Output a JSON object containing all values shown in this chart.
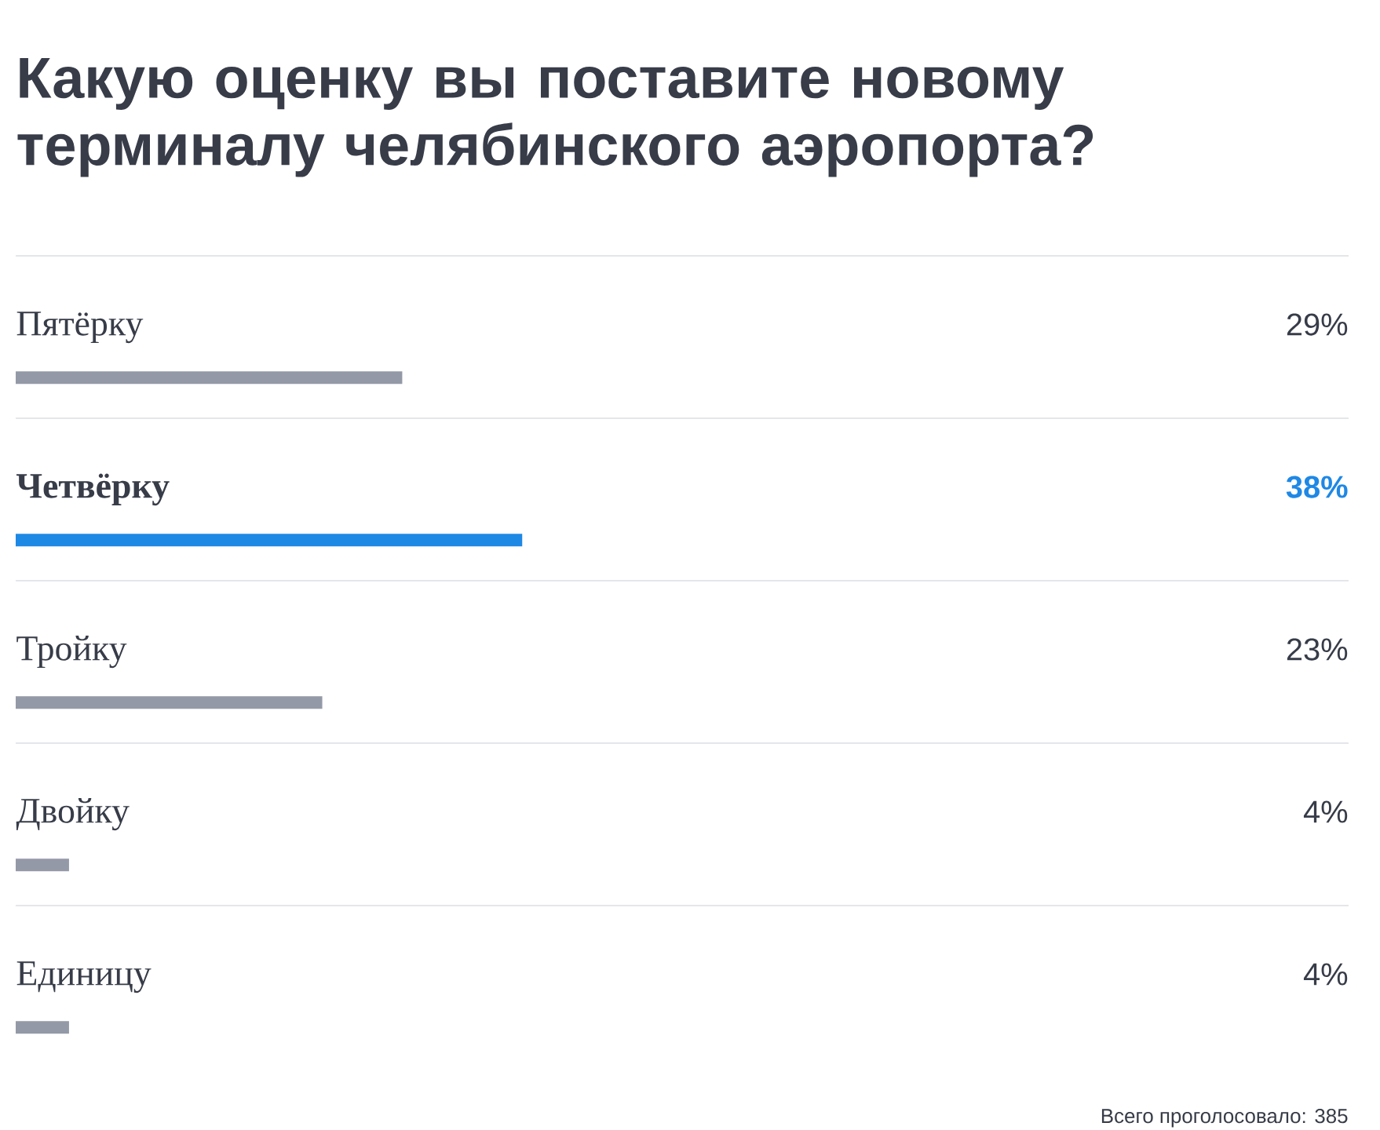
{
  "chart_data": {
    "type": "bar",
    "orientation": "horizontal",
    "title": "Какую оценку вы поставите новому терминалу челябинского аэропорта?",
    "categories": [
      "Пятёрку",
      "Четвёрку",
      "Тройку",
      "Двойку",
      "Единицу"
    ],
    "values": [
      29,
      38,
      23,
      4,
      4
    ],
    "colors": [
      "#9399a6",
      "#1e88e5",
      "#9399a6",
      "#9399a6",
      "#9399a6"
    ],
    "value_labels": [
      "29%",
      "38%",
      "23%",
      "4%",
      "4%"
    ],
    "xlim": [
      0,
      100
    ],
    "annotations": [
      "Всего проголосовало: 385"
    ]
  }
}
